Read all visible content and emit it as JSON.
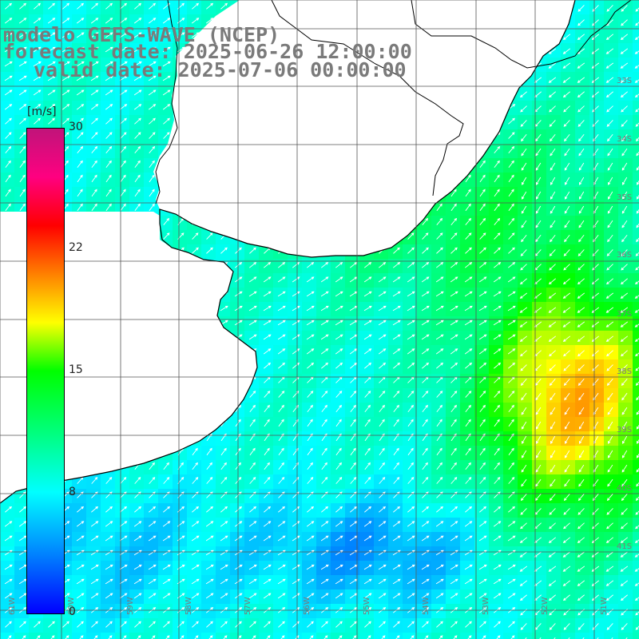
{
  "title": {
    "line1": "modelo GEFS-WAVE (NCEP)",
    "line2": "forecast date: 2025-06-26 12:00:00",
    "line3": "valid date: 2025-07-06 00:00:00"
  },
  "colorbar": {
    "unit": "[m/s]",
    "labels": [
      "30",
      "22",
      "15",
      "8",
      "0"
    ],
    "min": 0,
    "max": 30,
    "colors": [
      "#0000ff",
      "#0080ff",
      "#00ffff",
      "#00ff80",
      "#00ff00",
      "#ffff00",
      "#ff8000",
      "#ff0000",
      "#c0147a"
    ]
  },
  "axes": {
    "lat_labels": [
      "33S",
      "34S",
      "35S",
      "36S",
      "37S",
      "38S",
      "39S",
      "40S",
      "41S"
    ],
    "lon_labels": [
      "61W",
      "60W",
      "59W",
      "58W",
      "57W",
      "56W",
      "55W",
      "54W",
      "53W",
      "52W",
      "51W"
    ]
  },
  "colors": {
    "land": "#ffffff",
    "grid": "#555555",
    "coast": "#000000",
    "arrows": "#ffffff",
    "labels": "#7a7a7a"
  }
}
